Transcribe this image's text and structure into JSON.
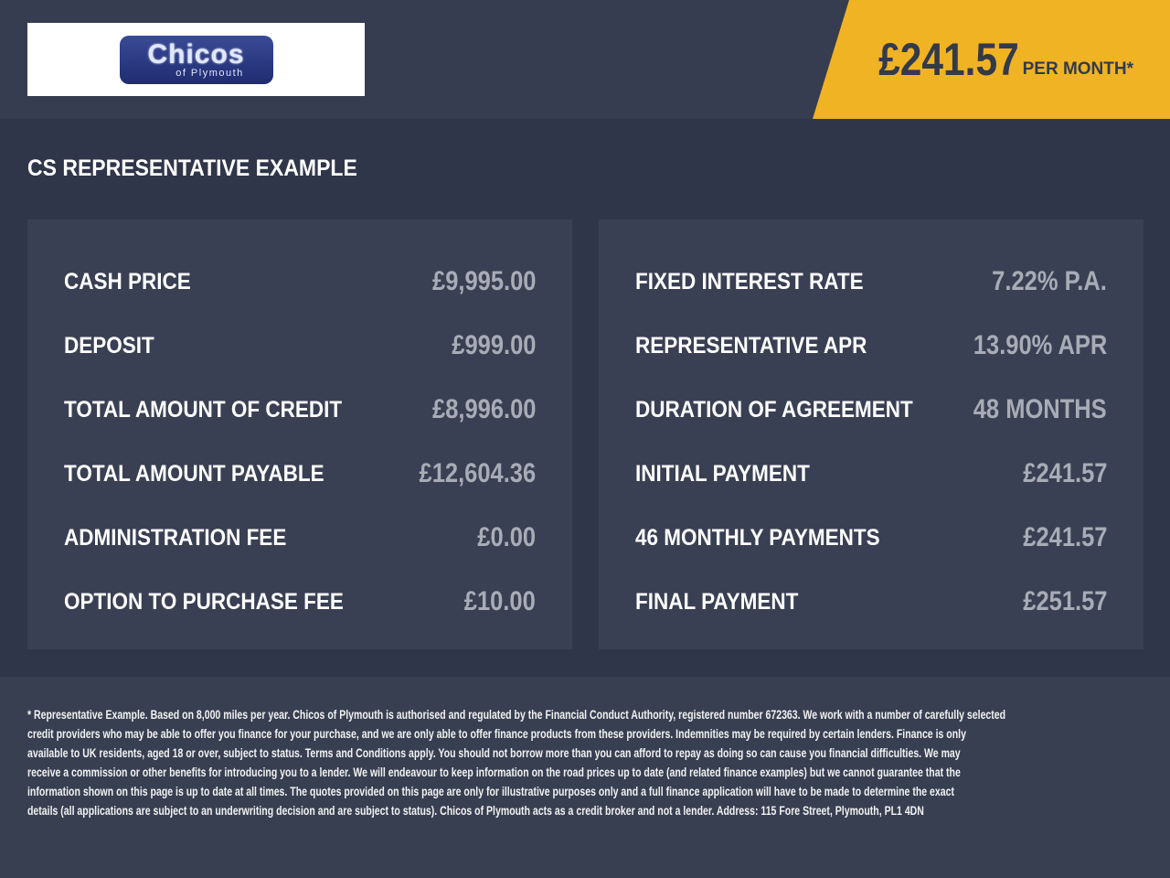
{
  "logo": {
    "text": "Chicos",
    "subtext": "of Plymouth"
  },
  "header": {
    "monthly_price": "£241.57",
    "per_month": "PER MONTH*",
    "accent_color": "#f0b323"
  },
  "title": "CS REPRESENTATIVE EXAMPLE",
  "left": [
    {
      "label": "CASH PRICE",
      "value": "£9,995.00"
    },
    {
      "label": "DEPOSIT",
      "value": "£999.00"
    },
    {
      "label": "TOTAL AMOUNT OF CREDIT",
      "value": "£8,996.00"
    },
    {
      "label": "TOTAL AMOUNT PAYABLE",
      "value": "£12,604.36"
    },
    {
      "label": "ADMINISTRATION FEE",
      "value": "£0.00"
    },
    {
      "label": "OPTION TO PURCHASE FEE",
      "value": "£10.00"
    }
  ],
  "right": [
    {
      "label": "FIXED INTEREST RATE",
      "value": "7.22% P.A."
    },
    {
      "label": "REPRESENTATIVE APR",
      "value": "13.90% APR"
    },
    {
      "label": "DURATION OF AGREEMENT",
      "value": "48 MONTHS"
    },
    {
      "label": "INITIAL PAYMENT",
      "value": "£241.57"
    },
    {
      "label": "46 MONTHLY PAYMENTS",
      "value": "£241.57"
    },
    {
      "label": "FINAL PAYMENT",
      "value": "£251.57"
    }
  ],
  "footer": [
    "* Representative Example. Based on 8,000 miles per year. Chicos of Plymouth is authorised and regulated by the Financial Conduct Authority, registered number 672363. We work with a number of carefully selected",
    "credit providers who may be able to offer you finance for your purchase, and we are only able to offer finance products from these providers. Indemnities may be required by certain lenders. Finance is only",
    "available to UK residents, aged 18 or over, subject to status. Terms and Conditions apply. You should not borrow more than you can afford to repay as doing so can cause you financial difficulties. We may",
    "receive a commission or other benefits for introducing you to a lender. We will endeavour to keep information on the road prices up to date (and related finance examples) but we cannot guarantee that the",
    "information shown on this page is up to date at all times. The quotes provided on this page are only for illustrative purposes only and a full finance application will have to be made to determine the exact",
    "details (all applications are subject to an underwriting decision and are subject to status). Chicos of Plymouth acts as a credit broker and not a lender. Address: 115 Fore Street, Plymouth, PL1 4DN"
  ]
}
